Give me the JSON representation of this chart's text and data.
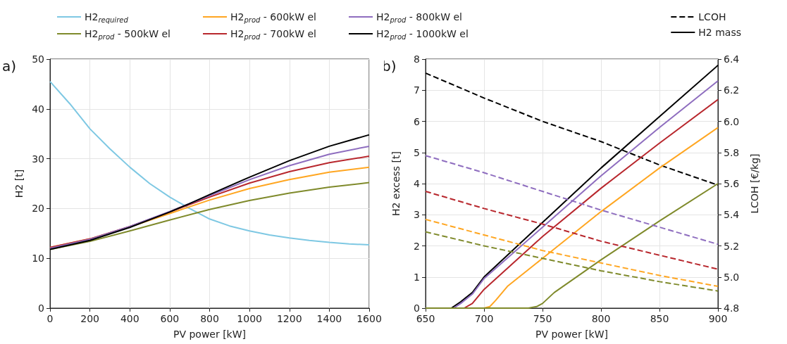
{
  "chart_data": [
    {
      "type": "line",
      "xlabel": "PV power [kW]",
      "ylabel": "H2 [t]",
      "annotations": [
        "a)"
      ],
      "xlim": [
        0,
        1600
      ],
      "ylim": [
        0,
        50
      ],
      "xticks": [
        0,
        200,
        400,
        600,
        800,
        1000,
        1200,
        1400,
        1600
      ],
      "yticks": [
        0,
        10,
        20,
        30,
        40,
        50
      ],
      "grid": true,
      "legend": "top",
      "line_style": "solid",
      "series": [
        {
          "name": "H2$_{required}$",
          "color": "#7ec8e3",
          "x": [
            0,
            100,
            200,
            300,
            400,
            500,
            600,
            700,
            800,
            900,
            1000,
            1100,
            1200,
            1300,
            1400,
            1500,
            1600
          ],
          "values": [
            45.5,
            41,
            36,
            32,
            28.3,
            25,
            22.3,
            20,
            17.9,
            16.5,
            15.5,
            14.7,
            14.1,
            13.6,
            13.2,
            12.9,
            12.7
          ]
        },
        {
          "name": "H2$_{prod}$ - 500kW el",
          "color": "#7f8a2b",
          "x": [
            0,
            200,
            400,
            600,
            800,
            1000,
            1200,
            1400,
            1600
          ],
          "values": [
            11.8,
            13.4,
            15.5,
            17.7,
            19.8,
            21.6,
            23.1,
            24.3,
            25.2
          ]
        },
        {
          "name": "H2$_{prod}$ - 600kW el",
          "color": "#ffa621",
          "x": [
            0,
            200,
            400,
            600,
            800,
            1000,
            1200,
            1400,
            1600
          ],
          "values": [
            12.2,
            13.9,
            16.3,
            19,
            21.7,
            24,
            25.8,
            27.3,
            28.3
          ]
        },
        {
          "name": "H2$_{prod}$ - 700kW el",
          "color": "#b8272d",
          "x": [
            0,
            200,
            400,
            600,
            800,
            1000,
            1200,
            1400,
            1600
          ],
          "values": [
            12.2,
            13.9,
            16.4,
            19.3,
            22.3,
            25.1,
            27.4,
            29.2,
            30.5
          ]
        },
        {
          "name": "H2$_{prod}$ - 800kW el",
          "color": "#8e6dbf",
          "x": [
            0,
            200,
            400,
            600,
            800,
            1000,
            1200,
            1400,
            1600
          ],
          "values": [
            12,
            13.8,
            16.4,
            19.4,
            22.6,
            25.8,
            28.6,
            30.9,
            32.5
          ]
        },
        {
          "name": "H2$_{prod}$ - 1000kW el",
          "color": "#000000",
          "x": [
            0,
            200,
            400,
            600,
            700,
            800,
            1000,
            1200,
            1400,
            1600
          ],
          "values": [
            11.8,
            13.6,
            16.2,
            19.3,
            21,
            22.8,
            26.3,
            29.6,
            32.5,
            34.8
          ]
        }
      ]
    },
    {
      "type": "line",
      "xlabel": "PV power [kW]",
      "ylabel": "H2 excess [t]",
      "y2label": "LCOH [€/kg]",
      "annotations": [
        "b)"
      ],
      "xlim": [
        650,
        900
      ],
      "ylim": [
        0,
        8
      ],
      "y2lim": [
        4.8,
        6.4
      ],
      "xticks": [
        650,
        700,
        750,
        800,
        850,
        900
      ],
      "yticks": [
        0,
        1,
        2,
        3,
        4,
        5,
        6,
        7,
        8
      ],
      "y2ticks": [
        4.8,
        {
          "value": 5,
          "label": "5.0"
        },
        5.2,
        5.4,
        5.6,
        5.8,
        {
          "value": 6,
          "label": "6.0"
        },
        6.2,
        6.4
      ],
      "grid": true,
      "legend": "top right",
      "series": [
        {
          "name": "LCOH",
          "color": "#000000",
          "axis": "y2",
          "line_style": "dashed",
          "x": [
            650,
            700,
            750,
            800,
            850,
            900
          ],
          "values": [
            6.31,
            6.15,
            6.0,
            5.87,
            5.72,
            5.59
          ]
        },
        {
          "name": "H2 mass",
          "color": "#000000",
          "line_style": "solid",
          "x": [
            650,
            672,
            680,
            690,
            700,
            750,
            800,
            850,
            900
          ],
          "values": [
            0,
            0,
            0.2,
            0.5,
            1.0,
            2.75,
            4.5,
            6.15,
            7.8
          ]
        },
        {
          "color": "#8e6dbf",
          "line_style": "solid",
          "x": [
            650,
            674,
            680,
            690,
            700,
            750,
            800,
            850,
            900
          ],
          "values": [
            0,
            0,
            0.15,
            0.45,
            0.95,
            2.6,
            4.25,
            5.8,
            7.3
          ]
        },
        {
          "color": "#b8272d",
          "line_style": "solid",
          "x": [
            650,
            683,
            690,
            700,
            750,
            800,
            850,
            900
          ],
          "values": [
            0,
            0,
            0.15,
            0.6,
            2.3,
            3.85,
            5.3,
            6.7
          ]
        },
        {
          "color": "#ffa621",
          "line_style": "solid",
          "x": [
            650,
            700,
            705,
            710,
            720,
            750,
            800,
            850,
            900
          ],
          "values": [
            0,
            0,
            0.05,
            0.25,
            0.7,
            1.6,
            3.1,
            4.5,
            5.8
          ]
        },
        {
          "color": "#7f8a2b",
          "line_style": "solid",
          "x": [
            650,
            738,
            745,
            750,
            760,
            800,
            850,
            900
          ],
          "values": [
            0,
            0,
            0.05,
            0.15,
            0.5,
            1.55,
            2.8,
            4.0
          ]
        },
        {
          "color": "#8e6dbf",
          "axis": "y2",
          "line_style": "dashed",
          "x": [
            650,
            700,
            750,
            800,
            850,
            900
          ],
          "values": [
            5.78,
            5.67,
            5.55,
            5.43,
            5.32,
            5.21
          ]
        },
        {
          "color": "#b8272d",
          "axis": "y2",
          "line_style": "dashed",
          "x": [
            650,
            700,
            750,
            800,
            850,
            900
          ],
          "values": [
            5.55,
            5.44,
            5.34,
            5.23,
            5.14,
            5.05
          ]
        },
        {
          "color": "#ffa621",
          "axis": "y2",
          "line_style": "dashed",
          "x": [
            650,
            700,
            750,
            800,
            850,
            900
          ],
          "values": [
            5.37,
            5.27,
            5.17,
            5.09,
            5.01,
            4.94
          ]
        },
        {
          "color": "#7f8a2b",
          "axis": "y2",
          "line_style": "dashed",
          "x": [
            650,
            700,
            750,
            800,
            850,
            900
          ],
          "values": [
            5.29,
            5.2,
            5.12,
            5.04,
            4.97,
            4.91
          ]
        }
      ]
    }
  ]
}
